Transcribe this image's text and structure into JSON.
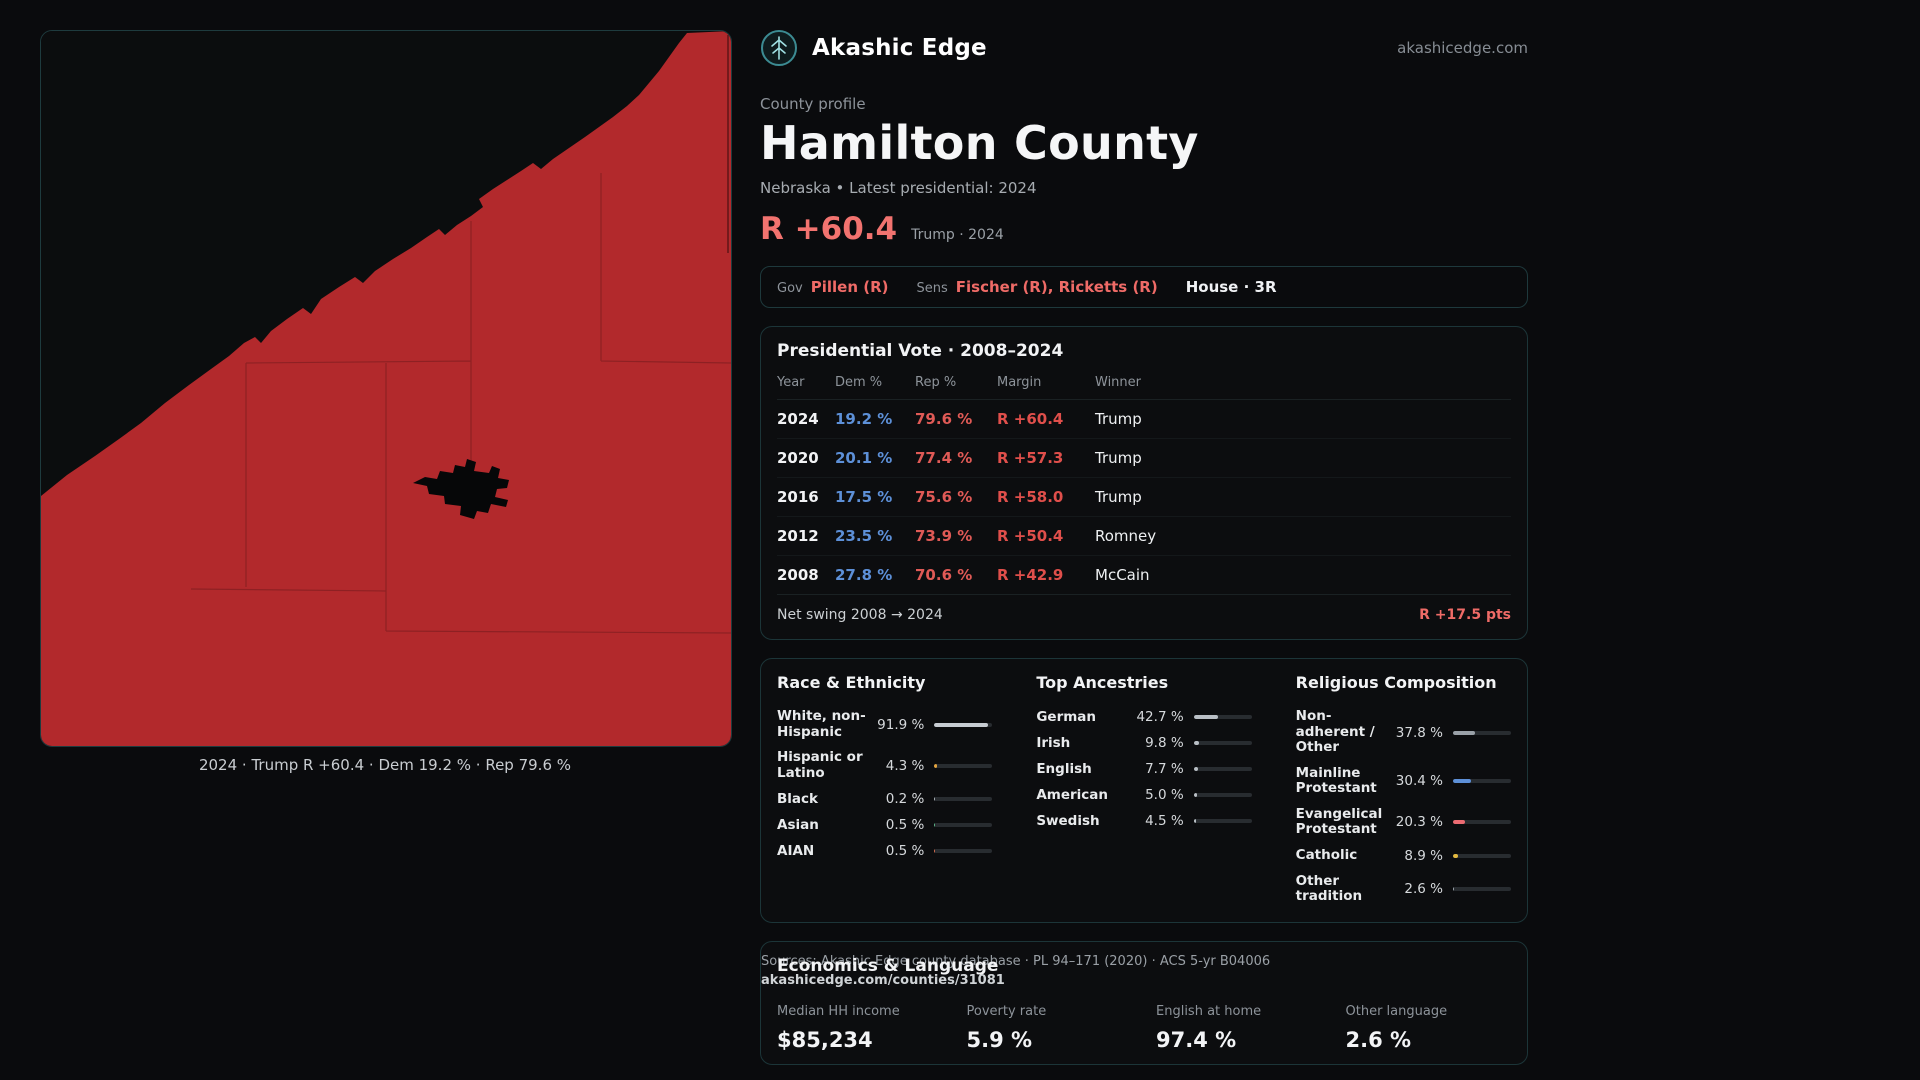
{
  "header": {
    "app_name": "Akashic Edge",
    "domain": "akashicedge.com"
  },
  "profile": {
    "eyebrow": "County profile",
    "title": "Hamilton County",
    "subtitle": "Nebraska • Latest presidential: 2024",
    "big_margin": "R +60.4",
    "margin_context": "Trump · 2024"
  },
  "officials": {
    "gov_label": "Gov",
    "gov_value": "Pillen (R)",
    "sens_label": "Sens",
    "sens_value": "Fischer (R), Ricketts (R)",
    "house_value": "House · 3R"
  },
  "map": {
    "caption": "2024 · Trump R +60.4 · Dem 19.2 % · Rep 79.6 %",
    "county_fill_color": "#b2292c"
  },
  "vote_table": {
    "title": "Presidential Vote · 2008–2024",
    "columns": [
      "Year",
      "Dem %",
      "Rep %",
      "Margin",
      "Winner"
    ],
    "rows": [
      {
        "year": "2024",
        "dem": "19.2 %",
        "rep": "79.6 %",
        "margin": "R +60.4",
        "winner": "Trump"
      },
      {
        "year": "2020",
        "dem": "20.1 %",
        "rep": "77.4 %",
        "margin": "R +57.3",
        "winner": "Trump"
      },
      {
        "year": "2016",
        "dem": "17.5 %",
        "rep": "75.6 %",
        "margin": "R +58.0",
        "winner": "Trump"
      },
      {
        "year": "2012",
        "dem": "23.5 %",
        "rep": "73.9 %",
        "margin": "R +50.4",
        "winner": "Romney"
      },
      {
        "year": "2008",
        "dem": "27.8 %",
        "rep": "70.6 %",
        "margin": "R +42.9",
        "winner": "McCain"
      }
    ],
    "footer_label": "Net swing 2008 → 2024",
    "footer_value": "R +17.5 pts"
  },
  "demographics": {
    "race": {
      "title": "Race & Ethnicity",
      "rows": [
        {
          "label": "White, non-Hispanic",
          "value": "91.9 %",
          "pct": 91.9,
          "color": "#c7ccd2"
        },
        {
          "label": "Hispanic or Latino",
          "value": "4.3 %",
          "pct": 4.3,
          "color": "#e3a43f"
        },
        {
          "label": "Black",
          "value": "0.2 %",
          "pct": 0.2,
          "color": "#aab0b6"
        },
        {
          "label": "Asian",
          "value": "0.5 %",
          "pct": 0.5,
          "color": "#5bb386"
        },
        {
          "label": "AIAN",
          "value": "0.5 %",
          "pct": 0.5,
          "color": "#d06a4e"
        }
      ]
    },
    "ancestries": {
      "title": "Top Ancestries",
      "rows": [
        {
          "label": "German",
          "value": "42.7 %",
          "pct": 42.7,
          "color": "#b9bfc5"
        },
        {
          "label": "Irish",
          "value": "9.8 %",
          "pct": 9.8,
          "color": "#b9bfc5"
        },
        {
          "label": "English",
          "value": "7.7 %",
          "pct": 7.7,
          "color": "#b9bfc5"
        },
        {
          "label": "American",
          "value": "5.0 %",
          "pct": 5.0,
          "color": "#b9bfc5"
        },
        {
          "label": "Swedish",
          "value": "4.5 %",
          "pct": 4.5,
          "color": "#b9bfc5"
        }
      ]
    },
    "religion": {
      "title": "Religious Composition",
      "rows": [
        {
          "label": "Non-adherent / Other",
          "value": "37.8 %",
          "pct": 37.8,
          "color": "#9aa1a8"
        },
        {
          "label": "Mainline Protestant",
          "value": "30.4 %",
          "pct": 30.4,
          "color": "#5d90d8"
        },
        {
          "label": "Evangelical Protestant",
          "value": "20.3 %",
          "pct": 20.3,
          "color": "#ec6b72"
        },
        {
          "label": "Catholic",
          "value": "8.9 %",
          "pct": 8.9,
          "color": "#e3b93f"
        },
        {
          "label": "Other tradition",
          "value": "2.6 %",
          "pct": 2.6,
          "color": "#9aa1a8"
        }
      ]
    }
  },
  "economics": {
    "title": "Economics & Language",
    "fields": [
      {
        "label": "Median HH income",
        "value": "$85,234"
      },
      {
        "label": "Poverty rate",
        "value": "5.9 %"
      },
      {
        "label": "English at home",
        "value": "97.4 %"
      },
      {
        "label": "Other language",
        "value": "2.6 %"
      }
    ]
  },
  "sources": {
    "line1": "Sources: Akashic Edge county database · PL 94–171 (2020) · ACS 5-yr B04006",
    "line2": "akashicedge.com/counties/31081"
  }
}
